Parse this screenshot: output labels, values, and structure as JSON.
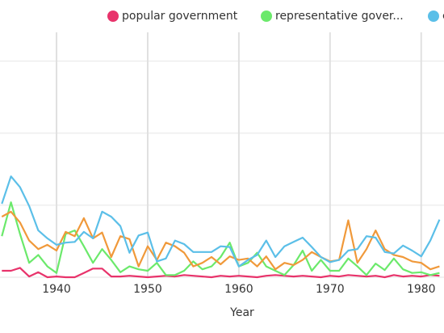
{
  "chart_data": {
    "type": "line",
    "x_label": "Year",
    "x": [
      1934,
      1935,
      1936,
      1937,
      1938,
      1939,
      1940,
      1941,
      1942,
      1943,
      1944,
      1945,
      1946,
      1947,
      1948,
      1949,
      1950,
      1951,
      1952,
      1953,
      1954,
      1955,
      1956,
      1957,
      1958,
      1959,
      1960,
      1961,
      1962,
      1963,
      1964,
      1965,
      1966,
      1967,
      1968,
      1969,
      1970,
      1971,
      1972,
      1973,
      1974,
      1975,
      1976,
      1977,
      1978,
      1979,
      1980,
      1981,
      1982
    ],
    "xlim": [
      1933.8,
      1982.5
    ],
    "xticks": [
      1940,
      1950,
      1960,
      1970,
      1980
    ],
    "ylim": [
      0,
      3.4
    ],
    "yticks": [
      1,
      2,
      3
    ],
    "grid": true,
    "series": [
      {
        "name": "popular government",
        "color": "#e8336b",
        "values": [
          0.09,
          0.09,
          0.13,
          0.01,
          0.07,
          0.0,
          0.01,
          0.0,
          0.0,
          0.06,
          0.12,
          0.12,
          0.01,
          0.01,
          0.02,
          0.01,
          0.0,
          0.01,
          0.02,
          0.01,
          0.03,
          0.02,
          0.01,
          0.0,
          0.02,
          0.01,
          0.02,
          0.01,
          0.0,
          0.02,
          0.03,
          0.02,
          0.01,
          0.02,
          0.01,
          0.0,
          0.02,
          0.01,
          0.03,
          0.02,
          0.01,
          0.02,
          0.0,
          0.03,
          0.01,
          0.02,
          0.01,
          0.03,
          0.02
        ]
      },
      {
        "name": "representative gover...",
        "color": "#6be96b",
        "values": [
          0.57,
          1.04,
          0.6,
          0.2,
          0.31,
          0.15,
          0.06,
          0.6,
          0.65,
          0.43,
          0.2,
          0.39,
          0.24,
          0.07,
          0.15,
          0.11,
          0.09,
          0.2,
          0.03,
          0.03,
          0.09,
          0.22,
          0.11,
          0.15,
          0.28,
          0.48,
          0.15,
          0.2,
          0.34,
          0.15,
          0.09,
          0.03,
          0.17,
          0.37,
          0.09,
          0.24,
          0.09,
          0.09,
          0.26,
          0.15,
          0.03,
          0.19,
          0.1,
          0.26,
          0.11,
          0.06,
          0.07,
          0.03,
          0.06
        ]
      },
      {
        "name": "c",
        "color": "#5bbfe8",
        "values": [
          1.02,
          1.4,
          1.25,
          0.99,
          0.65,
          0.54,
          0.45,
          0.48,
          0.49,
          0.63,
          0.54,
          0.91,
          0.84,
          0.71,
          0.34,
          0.58,
          0.62,
          0.22,
          0.26,
          0.51,
          0.46,
          0.35,
          0.35,
          0.35,
          0.43,
          0.42,
          0.15,
          0.24,
          0.31,
          0.51,
          0.28,
          0.43,
          0.49,
          0.55,
          0.42,
          0.28,
          0.21,
          0.24,
          0.37,
          0.39,
          0.57,
          0.55,
          0.35,
          0.33,
          0.44,
          0.37,
          0.29,
          0.51,
          0.8
        ]
      },
      {
        "color": "#f0993a",
        "values": [
          0.84,
          0.91,
          0.76,
          0.51,
          0.39,
          0.45,
          0.37,
          0.63,
          0.57,
          0.82,
          0.54,
          0.62,
          0.28,
          0.57,
          0.53,
          0.15,
          0.43,
          0.24,
          0.48,
          0.43,
          0.34,
          0.15,
          0.2,
          0.28,
          0.18,
          0.29,
          0.24,
          0.26,
          0.15,
          0.29,
          0.11,
          0.2,
          0.17,
          0.24,
          0.35,
          0.28,
          0.22,
          0.24,
          0.79,
          0.2,
          0.39,
          0.65,
          0.39,
          0.31,
          0.28,
          0.22,
          0.2,
          0.11,
          0.15
        ]
      }
    ]
  }
}
